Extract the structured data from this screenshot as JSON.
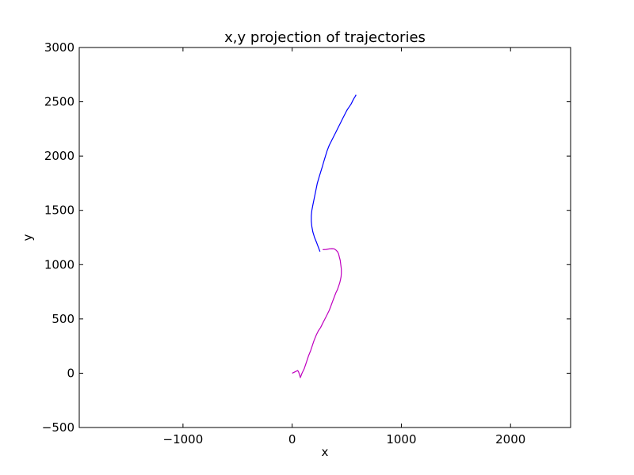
{
  "chart_data": {
    "type": "line",
    "title": "x,y projection of trajectories",
    "xlabel": "x",
    "ylabel": "y",
    "xlim": [
      -1950,
      2550
    ],
    "ylim": [
      -500,
      3000
    ],
    "xticks": [
      -1000,
      0,
      1000,
      2000
    ],
    "xtick_labels": [
      "−1000",
      "0",
      "1000",
      "2000"
    ],
    "yticks": [
      -500,
      0,
      500,
      1000,
      1500,
      2000,
      2500,
      3000
    ],
    "ytick_labels": [
      "−500",
      "0",
      "500",
      "1000",
      "1500",
      "2000",
      "2500",
      "3000"
    ],
    "grid": false,
    "series": [
      {
        "color": "#bf00bf",
        "x": [
          0,
          30,
          50,
          60,
          75,
          90,
          110,
          130,
          150,
          170,
          190,
          200,
          220,
          240,
          260,
          280,
          300,
          320,
          340,
          355,
          370,
          385,
          400,
          415,
          425,
          435,
          442,
          448,
          450,
          450,
          445,
          440,
          432,
          425,
          415,
          400,
          385,
          365,
          340,
          310,
          280
        ],
        "y": [
          0,
          15,
          25,
          10,
          -40,
          0,
          40,
          100,
          160,
          210,
          270,
          300,
          350,
          390,
          420,
          460,
          500,
          540,
          580,
          620,
          660,
          700,
          740,
          770,
          800,
          830,
          860,
          890,
          920,
          960,
          1000,
          1040,
          1070,
          1100,
          1120,
          1135,
          1145,
          1147,
          1145,
          1140,
          1138
        ]
      },
      {
        "color": "#0000ff",
        "x": [
          255,
          240,
          225,
          205,
          190,
          180,
          175,
          175,
          180,
          190,
          200,
          210,
          220,
          230,
          245,
          260,
          275,
          290,
          305,
          320,
          340,
          360,
          380,
          400,
          420,
          440,
          460,
          480,
          500,
          520,
          540,
          555,
          565,
          575,
          585
        ],
        "y": [
          1120,
          1160,
          1200,
          1250,
          1300,
          1350,
          1400,
          1450,
          1500,
          1550,
          1600,
          1650,
          1700,
          1750,
          1800,
          1850,
          1900,
          1950,
          2000,
          2050,
          2100,
          2140,
          2180,
          2220,
          2260,
          2300,
          2340,
          2380,
          2420,
          2450,
          2480,
          2510,
          2530,
          2545,
          2565
        ]
      }
    ]
  }
}
